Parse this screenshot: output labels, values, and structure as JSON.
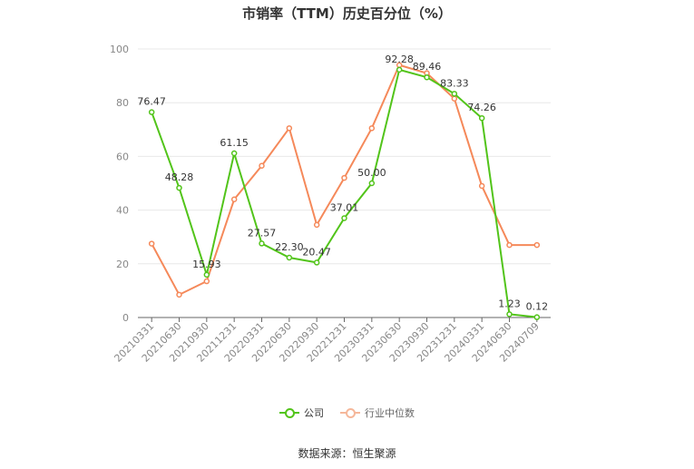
{
  "chart_data": {
    "type": "line",
    "title": "市销率（TTM）历史百分位（%）",
    "categories": [
      "20210331",
      "20210630",
      "20210930",
      "20211231",
      "20220331",
      "20220630",
      "20220930",
      "20221231",
      "20230331",
      "20230630",
      "20230930",
      "20231231",
      "20240331",
      "20240630",
      "20240709"
    ],
    "ylim": [
      0,
      100
    ],
    "yticks": [
      "0",
      "20",
      "40",
      "60",
      "80",
      "100"
    ],
    "grid": true,
    "legend_position": "bottom",
    "series": [
      {
        "name": "公司",
        "color": "#52c41a",
        "values": [
          76.47,
          48.28,
          15.93,
          61.15,
          27.57,
          22.3,
          20.47,
          37.01,
          50.0,
          92.28,
          89.46,
          83.33,
          74.26,
          1.23,
          0.12
        ],
        "labels": [
          "76.47",
          "48.28",
          "15.93",
          "61.15",
          "27.57",
          "22.30",
          "20.47",
          "37.01",
          "50.00",
          "92.28",
          "89.46",
          "83.33",
          "74.26",
          "1.23",
          "0.12"
        ]
      },
      {
        "name": "行业中位数",
        "color": "#f5895a",
        "values": [
          27.5,
          8.5,
          13.5,
          44.0,
          56.5,
          70.5,
          34.5,
          52.0,
          70.5,
          94.0,
          91.0,
          81.5,
          49.0,
          27.0,
          27.0
        ]
      }
    ]
  },
  "source": "数据来源：恒生聚源"
}
